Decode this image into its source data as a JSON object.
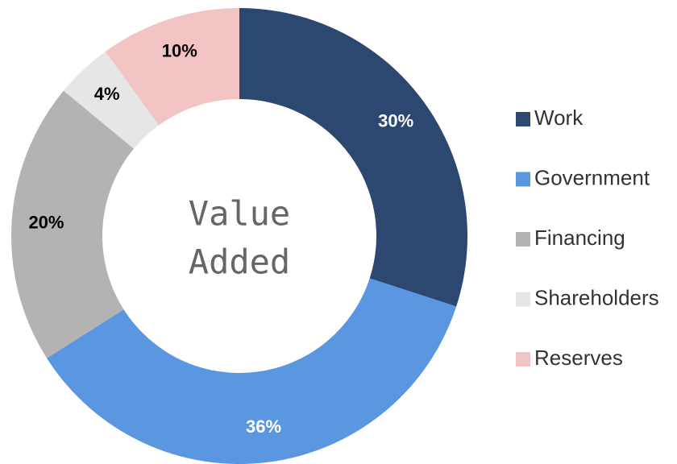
{
  "chart_data": {
    "type": "donut",
    "title": [
      "Value",
      "Added"
    ],
    "categories": [
      "Work",
      "Government",
      "Financing",
      "Shareholders",
      "Reserves"
    ],
    "values": [
      30,
      36,
      20,
      4,
      10
    ],
    "value_labels": [
      "30%",
      "36%",
      "20%",
      "4%",
      "10%"
    ],
    "colors": [
      "#2c4770",
      "#5b97e0",
      "#b3b3b3",
      "#e6e6e6",
      "#f2c4c4"
    ],
    "legend": "right"
  }
}
